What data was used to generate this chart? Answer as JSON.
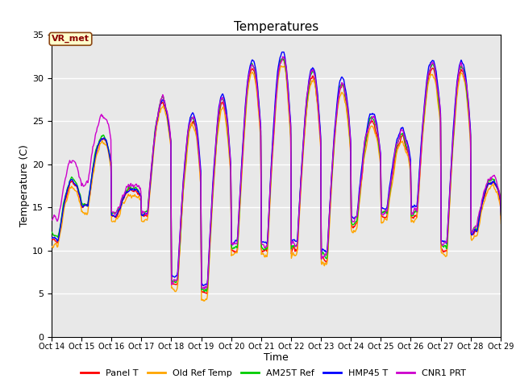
{
  "title": "Temperatures",
  "xlabel": "Time",
  "ylabel": "Temperature (C)",
  "ylim": [
    0,
    35
  ],
  "yticks": [
    0,
    5,
    10,
    15,
    20,
    25,
    30,
    35
  ],
  "xlim": [
    0,
    360
  ],
  "xtick_positions": [
    0,
    24,
    48,
    72,
    96,
    120,
    144,
    168,
    192,
    216,
    240,
    264,
    288,
    312,
    336,
    360
  ],
  "xtick_labels": [
    "Oct 14",
    "Oct 15",
    "Oct 16",
    "Oct 17",
    "Oct 18",
    "Oct 19",
    "Oct 20",
    "Oct 21",
    "Oct 22",
    "Oct 23",
    "Oct 24",
    "Oct 25",
    "Oct 26",
    "Oct 27",
    "Oct 28",
    "Oct 29"
  ],
  "legend_labels": [
    "Panel T",
    "Old Ref Temp",
    "AM25T Ref",
    "HMP45 T",
    "CNR1 PRT"
  ],
  "legend_colors": [
    "#ff0000",
    "#ffa500",
    "#00cc00",
    "#0000ff",
    "#cc00cc"
  ],
  "annotation_text": "VR_met",
  "bg_color": "#e8e8e8",
  "grid_color": "#ffffff",
  "title_fontsize": 11,
  "axis_label_fontsize": 9,
  "tick_fontsize": 8,
  "day_peaks": [
    18,
    23,
    17,
    27,
    25,
    27,
    31,
    32,
    30,
    29,
    25,
    23,
    31,
    31,
    18,
    15
  ],
  "night_mins": [
    11,
    15,
    14,
    14,
    6,
    5,
    10,
    10,
    10,
    9,
    13,
    14,
    14,
    10,
    12,
    14
  ]
}
